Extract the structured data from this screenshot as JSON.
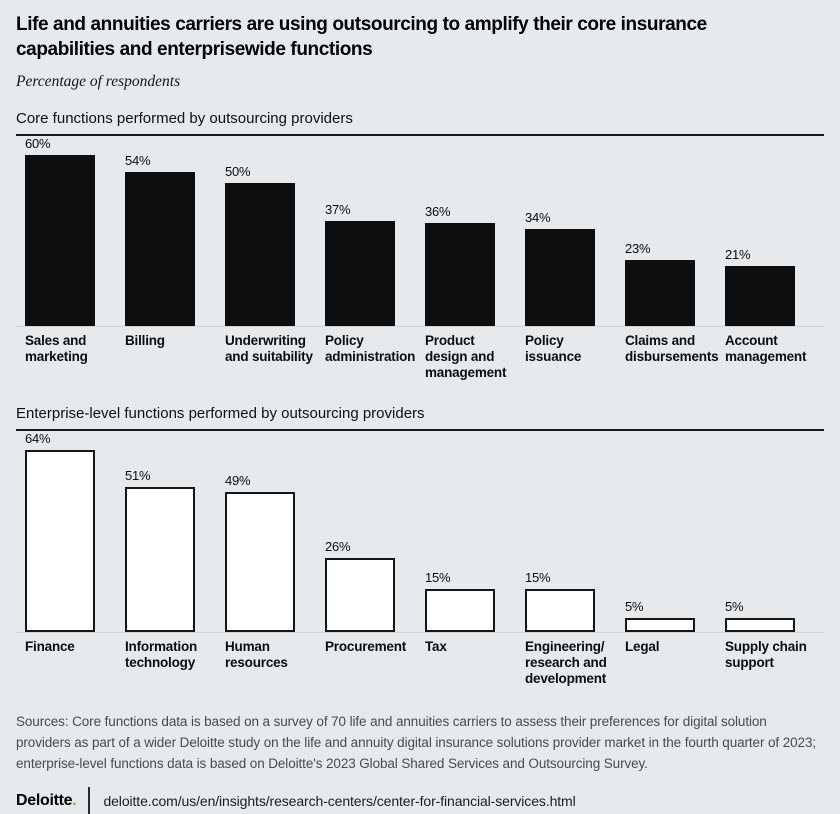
{
  "title": "Life and annuities carriers are using outsourcing to amplify their core insurance capabilities and enterprisewide functions",
  "subtitle": "Percentage of respondents",
  "chart_data": [
    {
      "type": "bar",
      "title": "Core functions performed by outsourcing providers",
      "categories": [
        "Sales and marketing",
        "Billing",
        "Underwriting and suitability",
        "Policy administration",
        "Product design and management",
        "Policy issuance",
        "Claims and disbursements",
        "Account management"
      ],
      "display_labels": [
        "Sales and\nmarketing",
        "Billing",
        "Underwriting\nand suitability",
        "Policy\nadministration",
        "Product\ndesign and\nmanagement",
        "Policy\nissuance",
        "Claims and\ndisbursements",
        "Account\nmanagement"
      ],
      "values": [
        60,
        54,
        50,
        37,
        36,
        34,
        23,
        21
      ],
      "value_labels": [
        "60%",
        "54%",
        "50%",
        "37%",
        "36%",
        "34%",
        "23%",
        "21%"
      ],
      "unit": "%",
      "ylim": [
        0,
        64
      ],
      "grid": false,
      "legend": "none",
      "bar_style": "solid",
      "bar_fill": "#0e0e0f"
    },
    {
      "type": "bar",
      "title": "Enterprise-level functions performed by outsourcing providers",
      "categories": [
        "Finance",
        "Information technology",
        "Human resources",
        "Procurement",
        "Tax",
        "Engineering/research and development",
        "Legal",
        "Supply chain support"
      ],
      "display_labels": [
        "Finance",
        "Information\ntechnology",
        "Human\nresources",
        "Procurement",
        "Tax",
        "Engineering/\nresearch and\ndevelopment",
        "Legal",
        "Supply chain\nsupport"
      ],
      "values": [
        64,
        51,
        49,
        26,
        15,
        15,
        5,
        5
      ],
      "value_labels": [
        "64%",
        "51%",
        "49%",
        "26%",
        "15%",
        "15%",
        "5%",
        "5%"
      ],
      "unit": "%",
      "ylim": [
        0,
        64
      ],
      "grid": false,
      "legend": "none",
      "bar_style": "outline",
      "bar_fill": "#ffffff",
      "bar_border": "#161616"
    }
  ],
  "footer": {
    "sources": "Sources: Core functions data is based on a survey of 70 life and annuities carriers to assess their preferences for digital solution providers as part of a wider Deloitte study on the life and annuity digital insurance solutions provider market in the fourth quarter of 2023; enterprise-level functions data is based on Deloitte's 2023 Global Shared Services and Outsourcing Survey.",
    "brand": "Deloitte",
    "brand_dot": ".",
    "url": "deloitte.com/us/en/insights/research-centers/center-for-financial-services.html"
  },
  "colors": {
    "background": "#e8e9eb",
    "solid_bar": "#0e0e0f",
    "outline_bar_border": "#161616",
    "section_rule": "#1a1a1a",
    "baseline": "#d3d4d6",
    "brand_dot": "#86bc25",
    "sources_text": "#4a4b4d"
  }
}
